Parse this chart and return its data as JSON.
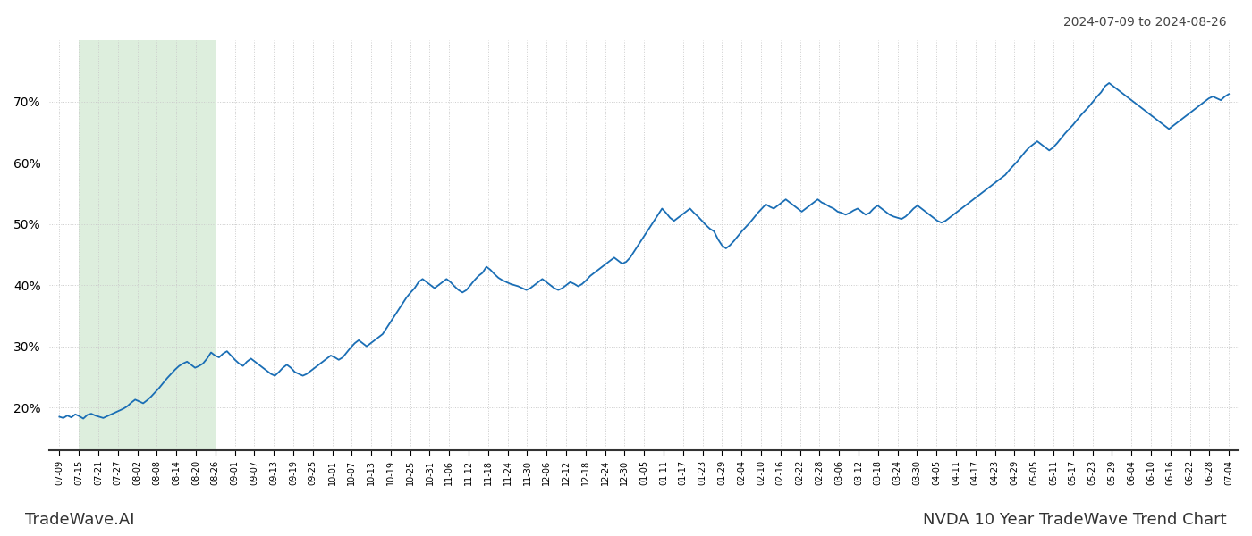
{
  "title_top_right": "2024-07-09 to 2024-08-26",
  "title_bottom_left": "TradeWave.AI",
  "title_bottom_right": "NVDA 10 Year TradeWave Trend Chart",
  "ylim": [
    13,
    80
  ],
  "yticks": [
    20,
    30,
    40,
    50,
    60,
    70
  ],
  "shade_start_label": "07-15",
  "shade_end_label": "08-26",
  "shade_color": "#ddeedd",
  "line_color": "#1a6eb5",
  "line_width": 1.3,
  "bg_color": "#ffffff",
  "grid_color": "#cccccc",
  "x_labels": [
    "07-09",
    "07-15",
    "07-21",
    "07-27",
    "08-02",
    "08-08",
    "08-14",
    "08-20",
    "08-26",
    "09-01",
    "09-07",
    "09-13",
    "09-19",
    "09-25",
    "10-01",
    "10-07",
    "10-13",
    "10-19",
    "10-25",
    "10-31",
    "11-06",
    "11-12",
    "11-18",
    "11-24",
    "11-30",
    "12-06",
    "12-12",
    "12-18",
    "12-24",
    "12-30",
    "01-05",
    "01-11",
    "01-17",
    "01-23",
    "01-29",
    "02-04",
    "02-10",
    "02-16",
    "02-22",
    "02-28",
    "03-06",
    "03-12",
    "03-18",
    "03-24",
    "03-30",
    "04-05",
    "04-11",
    "04-17",
    "04-23",
    "04-29",
    "05-05",
    "05-11",
    "05-17",
    "05-23",
    "05-29",
    "06-04",
    "06-10",
    "06-16",
    "06-22",
    "06-28",
    "07-04"
  ],
  "y_values": [
    18.5,
    18.3,
    18.7,
    18.4,
    18.9,
    18.6,
    18.2,
    18.8,
    19.0,
    18.7,
    18.5,
    18.3,
    18.6,
    18.9,
    19.2,
    19.5,
    19.8,
    20.2,
    20.8,
    21.3,
    21.0,
    20.7,
    21.2,
    21.8,
    22.5,
    23.2,
    24.0,
    24.8,
    25.5,
    26.2,
    26.8,
    27.2,
    27.5,
    27.0,
    26.5,
    26.8,
    27.2,
    28.0,
    29.0,
    28.5,
    28.2,
    28.8,
    29.2,
    28.5,
    27.8,
    27.2,
    26.8,
    27.5,
    28.0,
    27.5,
    27.0,
    26.5,
    26.0,
    25.5,
    25.2,
    25.8,
    26.5,
    27.0,
    26.5,
    25.8,
    25.5,
    25.2,
    25.5,
    26.0,
    26.5,
    27.0,
    27.5,
    28.0,
    28.5,
    28.2,
    27.8,
    28.2,
    29.0,
    29.8,
    30.5,
    31.0,
    30.5,
    30.0,
    30.5,
    31.0,
    31.5,
    32.0,
    33.0,
    34.0,
    35.0,
    36.0,
    37.0,
    38.0,
    38.8,
    39.5,
    40.5,
    41.0,
    40.5,
    40.0,
    39.5,
    40.0,
    40.5,
    41.0,
    40.5,
    39.8,
    39.2,
    38.8,
    39.2,
    40.0,
    40.8,
    41.5,
    42.0,
    43.0,
    42.5,
    41.8,
    41.2,
    40.8,
    40.5,
    40.2,
    40.0,
    39.8,
    39.5,
    39.2,
    39.5,
    40.0,
    40.5,
    41.0,
    40.5,
    40.0,
    39.5,
    39.2,
    39.5,
    40.0,
    40.5,
    40.2,
    39.8,
    40.2,
    40.8,
    41.5,
    42.0,
    42.5,
    43.0,
    43.5,
    44.0,
    44.5,
    44.0,
    43.5,
    43.8,
    44.5,
    45.5,
    46.5,
    47.5,
    48.5,
    49.5,
    50.5,
    51.5,
    52.5,
    51.8,
    51.0,
    50.5,
    51.0,
    51.5,
    52.0,
    52.5,
    51.8,
    51.2,
    50.5,
    49.8,
    49.2,
    48.8,
    47.5,
    46.5,
    46.0,
    46.5,
    47.2,
    48.0,
    48.8,
    49.5,
    50.2,
    51.0,
    51.8,
    52.5,
    53.2,
    52.8,
    52.5,
    53.0,
    53.5,
    54.0,
    53.5,
    53.0,
    52.5,
    52.0,
    52.5,
    53.0,
    53.5,
    54.0,
    53.5,
    53.2,
    52.8,
    52.5,
    52.0,
    51.8,
    51.5,
    51.8,
    52.2,
    52.5,
    52.0,
    51.5,
    51.8,
    52.5,
    53.0,
    52.5,
    52.0,
    51.5,
    51.2,
    51.0,
    50.8,
    51.2,
    51.8,
    52.5,
    53.0,
    52.5,
    52.0,
    51.5,
    51.0,
    50.5,
    50.2,
    50.5,
    51.0,
    51.5,
    52.0,
    52.5,
    53.0,
    53.5,
    54.0,
    54.5,
    55.0,
    55.5,
    56.0,
    56.5,
    57.0,
    57.5,
    58.0,
    58.8,
    59.5,
    60.2,
    61.0,
    61.8,
    62.5,
    63.0,
    63.5,
    63.0,
    62.5,
    62.0,
    62.5,
    63.2,
    64.0,
    64.8,
    65.5,
    66.2,
    67.0,
    67.8,
    68.5,
    69.2,
    70.0,
    70.8,
    71.5,
    72.5,
    73.0,
    72.5,
    72.0,
    71.5,
    71.0,
    70.5,
    70.0,
    69.5,
    69.0,
    68.5,
    68.0,
    67.5,
    67.0,
    66.5,
    66.0,
    65.5,
    66.0,
    66.5,
    67.0,
    67.5,
    68.0,
    68.5,
    69.0,
    69.5,
    70.0,
    70.5,
    70.8,
    70.5,
    70.2,
    70.8,
    71.2
  ]
}
